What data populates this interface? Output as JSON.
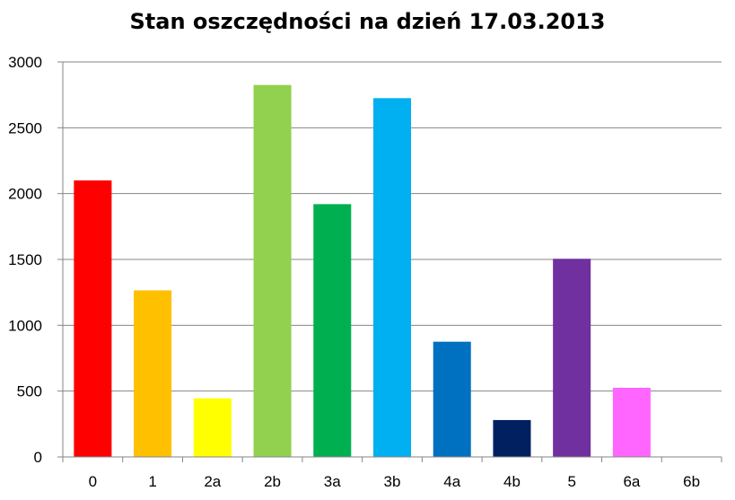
{
  "chart_data": {
    "type": "bar",
    "title": "Stan oszczędności na dzień 17.03.2013",
    "xlabel": "",
    "ylabel": "",
    "categories": [
      "0",
      "1",
      "2a",
      "2b",
      "3a",
      "3b",
      "4a",
      "4b",
      "5",
      "6a",
      "6b"
    ],
    "values": [
      2100,
      1265,
      445,
      2825,
      1920,
      2725,
      875,
      280,
      1505,
      525,
      0
    ],
    "colors": [
      "#ff0000",
      "#ffc000",
      "#ffff00",
      "#92d050",
      "#00b050",
      "#00b0f0",
      "#0070c0",
      "#002060",
      "#7030a0",
      "#ff66ff",
      "#ffffff"
    ],
    "ylim": [
      0,
      3000
    ],
    "yticks": [
      0,
      500,
      1000,
      1500,
      2000,
      2500,
      3000
    ],
    "grid": true,
    "legend": "none"
  }
}
